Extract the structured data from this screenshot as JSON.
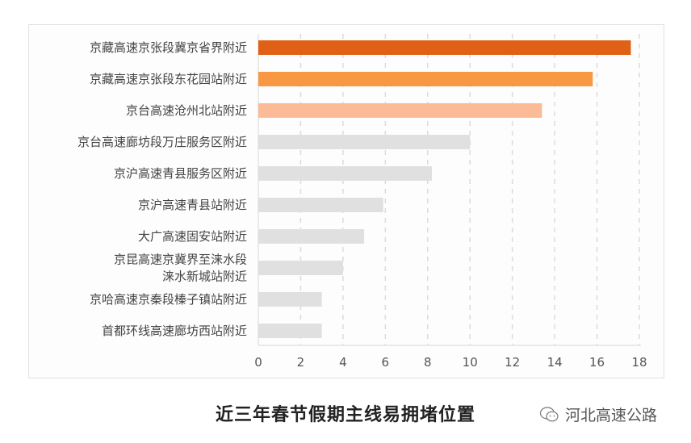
{
  "chart_data": {
    "type": "bar",
    "orientation": "horizontal",
    "title": "近三年春节假期主线易拥堵位置",
    "categories": [
      "京藏高速京张段冀京省界附近",
      "京藏高速京张段东花园站附近",
      "京台高速沧州北站附近",
      "京台高速廊坊段万庄服务区附近",
      "京沪高速青县服务区附近",
      "京沪高速青县站附近",
      "大广高速固安站附近",
      "京昆高速京冀界至涞水段\n涞水新城站附近",
      "京哈高速京秦段榛子镇站附近",
      "首都环线高速廊坊西站附近"
    ],
    "values": [
      17.6,
      15.8,
      13.4,
      10.0,
      8.2,
      5.9,
      5.0,
      4.0,
      3.0,
      3.0
    ],
    "colors": [
      "#e06116",
      "#f99842",
      "#fbbb96",
      "#e0e0e0",
      "#e0e0e0",
      "#e0e0e0",
      "#e0e0e0",
      "#e0e0e0",
      "#e0e0e0",
      "#e0e0e0"
    ],
    "xlim": [
      0,
      18
    ],
    "xticks": [
      0,
      2,
      4,
      6,
      8,
      10,
      12,
      14,
      16,
      18
    ],
    "xlabel": "",
    "ylabel": "",
    "grid": "vertical dashed"
  },
  "watermark": {
    "text": "河北高速公路",
    "icon": "wechat-icon"
  }
}
